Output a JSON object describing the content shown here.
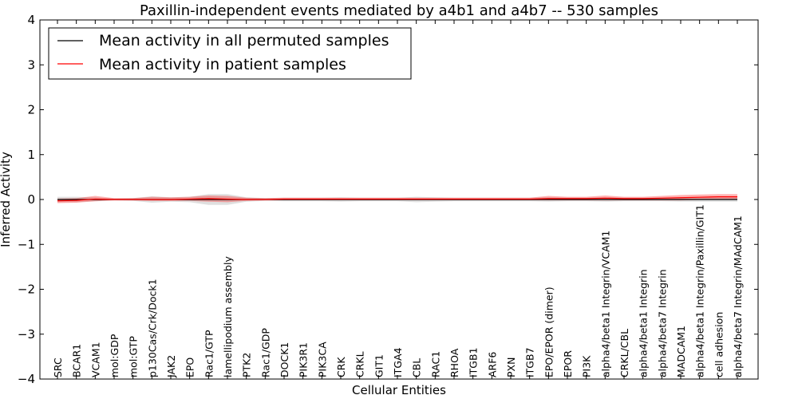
{
  "chart_data": {
    "type": "line",
    "title": "Paxillin-independent events mediated by a4b1 and a4b7 -- 530 samples",
    "xlabel": "Cellular Entities",
    "ylabel": "Inferred Activity",
    "ylim": [
      -4,
      4
    ],
    "yticks": [
      4,
      3,
      2,
      1,
      0,
      -1,
      -2,
      -3,
      -4
    ],
    "ytick_labels": [
      "4",
      "3",
      "2",
      "1",
      "0",
      "−1",
      "−2",
      "−3",
      "−4"
    ],
    "categories": [
      "SRC",
      "BCAR1",
      "VCAM1",
      "mol:GDP",
      "mol:GTP",
      "p130Cas/Crk/Dock1",
      "JAK2",
      "EPO",
      "Rac1/GTP",
      "lamellipodium assembly",
      "PTK2",
      "Rac1/GDP",
      "DOCK1",
      "PIK3R1",
      "PIK3CA",
      "CRK",
      "CRKL",
      "GIT1",
      "ITGA4",
      "CBL",
      "RAC1",
      "RHOA",
      "ITGB1",
      "ARF6",
      "PXN",
      "ITGB7",
      "EPO/EPOR (dimer)",
      "EPOR",
      "PI3K",
      "alpha4/beta1 Integrin/VCAM1",
      "CRKL/CBL",
      "alpha4/beta1 Integrin",
      "alpha4/beta7 Integrin",
      "MADCAM1",
      "alpha4/beta1 Integrin/Paxillin/GIT1",
      "cell adhesion",
      "alpha4/beta7 Integrin/MAdCAM1"
    ],
    "legend_position": "top-left",
    "series": [
      {
        "name": "Mean activity in all permuted samples",
        "color": "#000000",
        "values": [
          0,
          0,
          0,
          0,
          0,
          0,
          0,
          0,
          0,
          0,
          0,
          0,
          0,
          0,
          0,
          0,
          0,
          0,
          0,
          0,
          0,
          0,
          0,
          0,
          0,
          0,
          0,
          0,
          0,
          0,
          0,
          0,
          0,
          0,
          0,
          0,
          0
        ],
        "band_lower": [
          -0.06,
          -0.06,
          -0.04,
          -0.02,
          -0.03,
          -0.07,
          -0.05,
          -0.06,
          -0.12,
          -0.12,
          -0.05,
          -0.03,
          -0.04,
          -0.04,
          -0.04,
          -0.05,
          -0.04,
          -0.04,
          -0.04,
          -0.06,
          -0.05,
          -0.04,
          -0.04,
          -0.04,
          -0.04,
          -0.04,
          -0.05,
          -0.04,
          -0.04,
          -0.05,
          -0.04,
          -0.04,
          -0.04,
          -0.05,
          -0.05,
          -0.05,
          -0.05
        ],
        "band_upper": [
          0.06,
          0.06,
          0.05,
          0.02,
          0.03,
          0.07,
          0.05,
          0.06,
          0.12,
          0.12,
          0.05,
          0.03,
          0.04,
          0.04,
          0.04,
          0.05,
          0.04,
          0.04,
          0.04,
          0.06,
          0.05,
          0.04,
          0.04,
          0.04,
          0.04,
          0.04,
          0.05,
          0.04,
          0.04,
          0.05,
          0.04,
          0.04,
          0.04,
          0.05,
          0.05,
          0.05,
          0.05
        ]
      },
      {
        "name": "Mean activity in patient samples",
        "color": "#ff0000",
        "values": [
          -0.03,
          -0.02,
          0.01,
          0.0,
          0.0,
          0.0,
          0.0,
          0.01,
          0.02,
          0.01,
          0.0,
          0.0,
          0.01,
          0.01,
          0.01,
          0.01,
          0.01,
          0.01,
          0.01,
          0.01,
          0.01,
          0.01,
          0.01,
          0.01,
          0.01,
          0.01,
          0.02,
          0.02,
          0.02,
          0.03,
          0.02,
          0.02,
          0.03,
          0.04,
          0.05,
          0.06,
          0.06
        ],
        "band_lower": [
          -0.08,
          -0.07,
          -0.04,
          -0.02,
          -0.02,
          -0.03,
          -0.03,
          -0.03,
          -0.05,
          -0.06,
          -0.03,
          -0.02,
          -0.02,
          -0.02,
          -0.02,
          -0.02,
          -0.02,
          -0.02,
          -0.02,
          -0.02,
          -0.02,
          -0.02,
          -0.02,
          -0.02,
          -0.02,
          -0.02,
          -0.02,
          -0.02,
          -0.02,
          -0.02,
          -0.02,
          -0.02,
          -0.02,
          -0.02,
          -0.01,
          0.0,
          0.0
        ],
        "band_upper": [
          0.02,
          0.03,
          0.08,
          0.03,
          0.03,
          0.06,
          0.05,
          0.06,
          0.09,
          0.08,
          0.04,
          0.03,
          0.04,
          0.04,
          0.04,
          0.04,
          0.04,
          0.04,
          0.04,
          0.04,
          0.04,
          0.04,
          0.04,
          0.04,
          0.04,
          0.04,
          0.08,
          0.06,
          0.06,
          0.09,
          0.06,
          0.06,
          0.08,
          0.1,
          0.11,
          0.12,
          0.12
        ]
      }
    ]
  }
}
